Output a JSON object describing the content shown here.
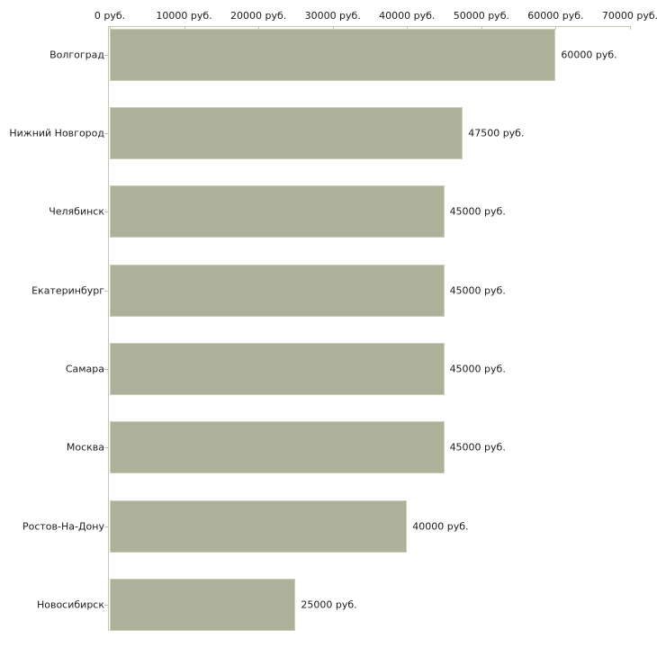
{
  "chart_data": {
    "type": "bar",
    "orientation": "horizontal",
    "title": "",
    "xlabel": "",
    "ylabel": "",
    "categories": [
      "Волгоград",
      "Нижний Новгород",
      "Челябинск",
      "Екатеринбург",
      "Самара",
      "Москва",
      "Ростов-На-Дону",
      "Новосибирск"
    ],
    "values": [
      60000,
      47500,
      45000,
      45000,
      45000,
      45000,
      40000,
      25000
    ],
    "value_labels": [
      "60000 руб.",
      "47500 руб.",
      "45000 руб.",
      "45000 руб.",
      "45000 руб.",
      "45000 руб.",
      "40000 руб.",
      "25000 руб."
    ],
    "x_ticks": [
      0,
      10000,
      20000,
      30000,
      40000,
      50000,
      60000,
      70000
    ],
    "x_tick_labels": [
      "0 руб.",
      "10000 руб.",
      "20000 руб.",
      "30000 руб.",
      "40000 руб.",
      "50000 руб.",
      "60000 руб.",
      "70000 руб."
    ],
    "xlim": [
      0,
      70000
    ],
    "axis_position": "top",
    "grid": false,
    "legend": null,
    "colors": {
      "bar_fill": "#adb19a",
      "bar_border": "#ccceba",
      "axis": "#c6c5ae",
      "text": "#1c1c1c",
      "background": "#ffffff"
    }
  }
}
